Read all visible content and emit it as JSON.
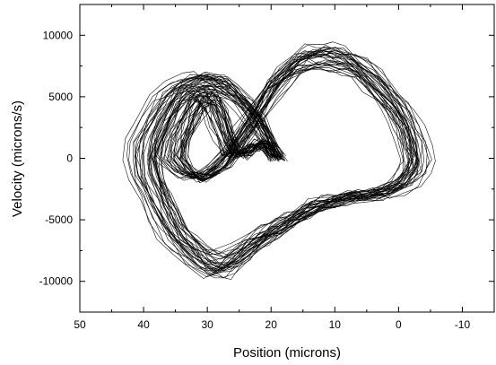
{
  "chart_data": {
    "type": "line",
    "title": "",
    "xlabel": "Position (microns)",
    "ylabel": "Velocity (microns/s)",
    "x_axis_reversed": true,
    "xlim": [
      50,
      -15
    ],
    "ylim": [
      -12500,
      12500
    ],
    "x_ticks": [
      50,
      40,
      30,
      20,
      10,
      0,
      -10
    ],
    "x_tick_labels": [
      "50",
      "40",
      "30",
      "20",
      "10",
      "0",
      "-10"
    ],
    "y_ticks": [
      10000,
      5000,
      0,
      -5000,
      -10000
    ],
    "y_tick_labels": [
      "10000",
      "5000",
      "0",
      "-5000",
      "-10000"
    ],
    "grid": false,
    "legend": "none",
    "line_color": "#000000",
    "series": [
      {
        "x": [
          19.0,
          20.5,
          22.0,
          24.0,
          26.0,
          28.0,
          30.0,
          32.0,
          34.0,
          36.0,
          38.0,
          39.5,
          40.0,
          39.5,
          38.0,
          36.5,
          35.0,
          33.0,
          31.0,
          29.0,
          27.0,
          25.0,
          23.0,
          21.0,
          19.0,
          17.0,
          15.0,
          13.0,
          11.0,
          9.0,
          7.0,
          5.0,
          3.0,
          1.0,
          -1.0,
          -2.5,
          -3.0,
          -2.5,
          -1.5,
          0.0,
          2.0,
          4.0,
          6.0,
          8.0,
          10.0,
          12.0,
          14.0,
          16.0,
          18.0,
          20.0,
          22.0,
          24.0,
          26.0,
          28.0,
          30.0,
          32.0,
          34.0,
          35.5,
          35.0,
          34.0,
          33.0,
          32.0,
          31.0,
          30.0,
          29.0,
          28.0,
          27.0,
          26.0,
          25.0,
          24.0,
          23.0,
          22.0,
          21.0,
          20.0,
          19.0
        ],
        "y": [
          0,
          1500,
          2900,
          4300,
          5300,
          6000,
          6300,
          6200,
          5700,
          4800,
          3200,
          1500,
          0,
          -1500,
          -3300,
          -5000,
          -6300,
          -7400,
          -8300,
          -8800,
          -8600,
          -7900,
          -7000,
          -6300,
          -5700,
          -5100,
          -4500,
          -4000,
          -3600,
          -3300,
          -3100,
          -3000,
          -2900,
          -2600,
          -2000,
          -1000,
          0,
          1200,
          2600,
          4000,
          5300,
          6400,
          7300,
          7900,
          8200,
          8300,
          8200,
          7700,
          6800,
          5600,
          4000,
          2400,
          800,
          -500,
          -1300,
          -1600,
          -1000,
          0,
          1300,
          2500,
          3700,
          4600,
          5100,
          5000,
          4300,
          3000,
          1500,
          500,
          200,
          500,
          900,
          1300,
          1000,
          500,
          0
        ]
      }
    ]
  }
}
